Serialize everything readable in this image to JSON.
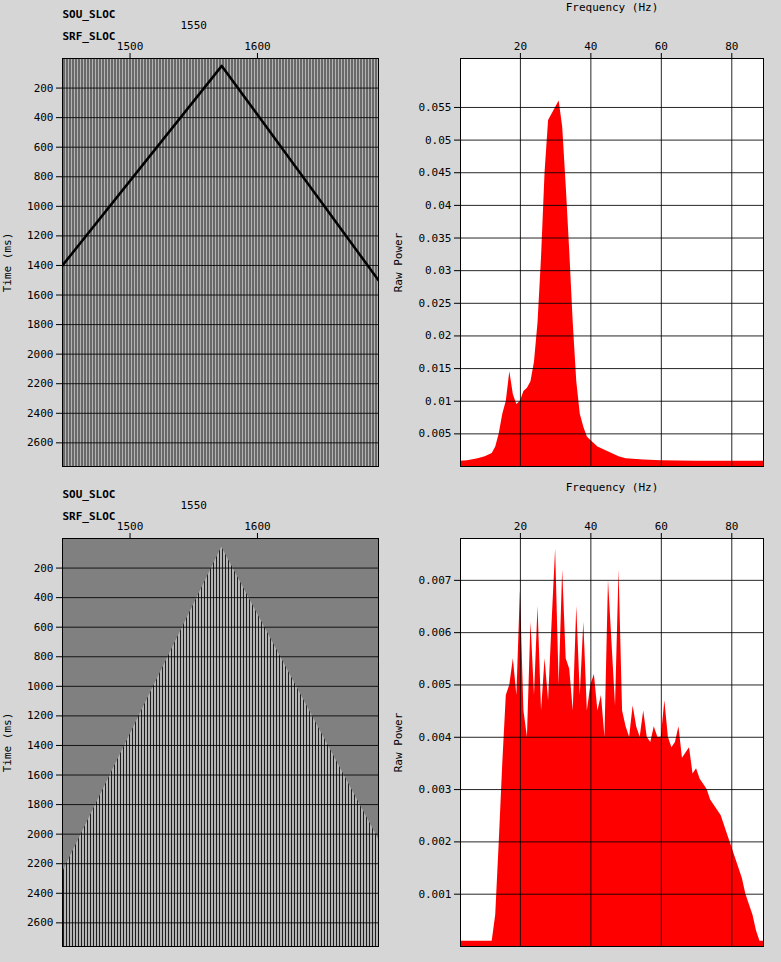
{
  "chart_data": [
    {
      "type": "line",
      "x2label": "SOU_SLOC",
      "x2ticks": [
        1550
      ],
      "xlabel": "SRF_SLOC",
      "ylabel": "Time (ms)",
      "x": [
        1447,
        1572,
        1695
      ],
      "values": [
        1400,
        50,
        1500
      ],
      "xlim": [
        1447,
        1695
      ],
      "xticks": [
        1500,
        1600
      ],
      "ylim": [
        0,
        2760
      ],
      "yticks": [
        200,
        400,
        600,
        800,
        1000,
        1200,
        1400,
        1600,
        1800,
        2000,
        2200,
        2400,
        2600
      ],
      "grid": true,
      "color": "#000000"
    },
    {
      "type": "area",
      "xlabel": "Frequency (Hz)",
      "ylabel": "Raw Power",
      "x": [
        3,
        5,
        8,
        10,
        12,
        13,
        14,
        15,
        16,
        17,
        18,
        19,
        20,
        21,
        22,
        23,
        24,
        25,
        26,
        27,
        28,
        29,
        30,
        31,
        32,
        33,
        34,
        35,
        36,
        37,
        38,
        39,
        40,
        42,
        44,
        46,
        48,
        50,
        55,
        60,
        70,
        80,
        89
      ],
      "values": [
        0.0008,
        0.0009,
        0.0012,
        0.0015,
        0.002,
        0.003,
        0.005,
        0.008,
        0.01,
        0.0145,
        0.011,
        0.0095,
        0.01,
        0.0115,
        0.012,
        0.013,
        0.016,
        0.022,
        0.032,
        0.045,
        0.053,
        0.054,
        0.055,
        0.056,
        0.052,
        0.043,
        0.033,
        0.022,
        0.013,
        0.008,
        0.006,
        0.0045,
        0.004,
        0.003,
        0.0025,
        0.002,
        0.0015,
        0.0012,
        0.001,
        0.0009,
        0.0008,
        0.0008,
        0.0008
      ],
      "xlim": [
        3,
        89
      ],
      "xticks": [
        20,
        40,
        60,
        80
      ],
      "ylim": [
        0,
        0.0625
      ],
      "yticks": [
        0.005,
        0.01,
        0.015,
        0.02,
        0.025,
        0.03,
        0.035,
        0.04,
        0.045,
        0.05,
        0.055
      ],
      "grid": true,
      "color": "#ff0000"
    },
    {
      "type": "area",
      "x2label": "SOU_SLOC",
      "x2ticks": [
        1550
      ],
      "xlabel": "SRF_SLOC",
      "ylabel": "Time (ms)",
      "x": [
        1447,
        1572,
        1695
      ],
      "values": [
        2260,
        60,
        2033
      ],
      "xlim": [
        1447,
        1695
      ],
      "xticks": [
        1500,
        1600
      ],
      "ylim": [
        0,
        2760
      ],
      "yticks": [
        200,
        400,
        600,
        800,
        1000,
        1200,
        1400,
        1600,
        1800,
        2000,
        2200,
        2400,
        2600
      ],
      "grid": true,
      "color": "#808080"
    },
    {
      "type": "area",
      "xlabel": "Frequency (Hz)",
      "ylabel": "Raw Power",
      "x": [
        3,
        10,
        12,
        13,
        14,
        15,
        16,
        17,
        18,
        19,
        20,
        21,
        22,
        23,
        24,
        25,
        26,
        27,
        28,
        29,
        30,
        31,
        32,
        33,
        34,
        35,
        36,
        37,
        38,
        39,
        40,
        41,
        42,
        43,
        44,
        45,
        46,
        47,
        48,
        49,
        50,
        51,
        52,
        53,
        54,
        55,
        56,
        57,
        58,
        59,
        60,
        61,
        62,
        63,
        64,
        65,
        66,
        67,
        68,
        69,
        70,
        71,
        72,
        73,
        74,
        75,
        76,
        77,
        78,
        79,
        80,
        81,
        82,
        83,
        84,
        85,
        86,
        87,
        88,
        89
      ],
      "values": [
        0.0001,
        0.0001,
        0.0001,
        0.0006,
        0.002,
        0.0035,
        0.0048,
        0.005,
        0.0055,
        0.0048,
        0.0068,
        0.0045,
        0.004,
        0.0062,
        0.0048,
        0.0065,
        0.0045,
        0.0055,
        0.0047,
        0.0062,
        0.0076,
        0.005,
        0.0072,
        0.0055,
        0.0053,
        0.0045,
        0.0065,
        0.0048,
        0.0062,
        0.0045,
        0.005,
        0.0052,
        0.0045,
        0.0048,
        0.004,
        0.007,
        0.0058,
        0.0046,
        0.0072,
        0.0045,
        0.0042,
        0.004,
        0.0046,
        0.0042,
        0.004,
        0.0045,
        0.004,
        0.0039,
        0.0042,
        0.004,
        0.004,
        0.0047,
        0.004,
        0.0038,
        0.0039,
        0.0042,
        0.0036,
        0.0037,
        0.0038,
        0.0033,
        0.0034,
        0.0032,
        0.0031,
        0.003,
        0.0028,
        0.0027,
        0.0026,
        0.0025,
        0.0023,
        0.0021,
        0.0019,
        0.0017,
        0.0015,
        0.0013,
        0.001,
        0.0008,
        0.0006,
        0.0003,
        0.0001,
        0.0001
      ],
      "xlim": [
        3,
        89
      ],
      "xticks": [
        20,
        40,
        60,
        80
      ],
      "ylim": [
        0,
        0.0078
      ],
      "yticks": [
        0.001,
        0.002,
        0.003,
        0.004,
        0.005,
        0.006,
        0.007
      ],
      "grid": true,
      "color": "#ff0000"
    }
  ]
}
